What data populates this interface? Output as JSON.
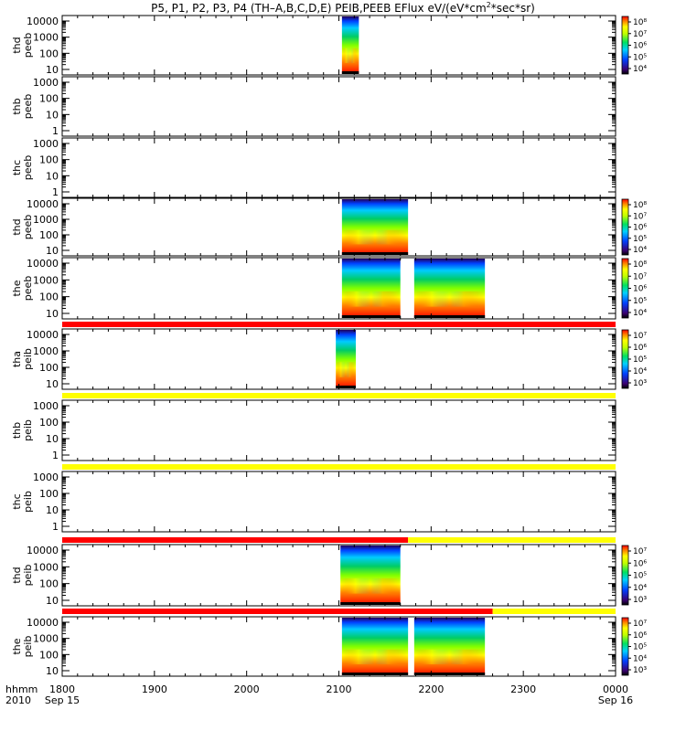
{
  "chart_data": {
    "type": "heatmap",
    "title_parts": [
      "P5, P1, P2, P3, P4 (TH–A,B,C,D,E) PEIB,PEEB EFlux eV/(eV*cm",
      "2",
      "*sec*sr)"
    ],
    "x_axis": {
      "label_top": "hhmm",
      "label_bottom": "2010",
      "range": [
        "1800",
        "0000"
      ],
      "tick_labels": [
        "1800",
        "1900",
        "2000",
        "2100",
        "2200",
        "2300",
        "0000"
      ],
      "date_labels": [
        {
          "at": "1800",
          "text": "Sep 15"
        },
        {
          "at": "0000",
          "text": "Sep 16"
        }
      ]
    },
    "panels": [
      {
        "label": [
          "thd",
          "peeb"
        ],
        "yticks": [
          "10000",
          "1000",
          "100",
          "10"
        ],
        "colorbar": [
          "10⁸",
          "10⁷",
          "10⁶",
          "10⁵",
          "10⁴"
        ],
        "data_intervals": [
          [
            "2102",
            "2113"
          ]
        ]
      },
      {
        "label": [
          "thb",
          "peeb"
        ],
        "yticks": [
          "1000",
          "100",
          "10",
          "1"
        ],
        "colorbar": null,
        "data_intervals": []
      },
      {
        "label": [
          "thc",
          "peeb"
        ],
        "yticks": [
          "1000",
          "100",
          "10",
          "1"
        ],
        "colorbar": null,
        "data_intervals": []
      },
      {
        "label": [
          "thd",
          "peeb"
        ],
        "yticks": [
          "10000",
          "1000",
          "100",
          "10"
        ],
        "colorbar": [
          "10⁸",
          "10⁷",
          "10⁶",
          "10⁵",
          "10⁴"
        ],
        "data_intervals": [
          [
            "2102",
            "2145"
          ]
        ]
      },
      {
        "label": [
          "the",
          "peeb"
        ],
        "yticks": [
          "10000",
          "1000",
          "100",
          "10"
        ],
        "colorbar": [
          "10⁸",
          "10⁷",
          "10⁶",
          "10⁵",
          "10⁴"
        ],
        "data_intervals": [
          [
            "2102",
            "2140"
          ],
          [
            "2149",
            "2235"
          ]
        ]
      },
      {
        "label": [
          "tha",
          "peib"
        ],
        "yticks": [
          "10000",
          "1000",
          "100",
          "10"
        ],
        "colorbar": [
          "10⁷",
          "10⁶",
          "10⁵",
          "10⁴",
          "10³"
        ],
        "data_intervals": [
          [
            "2058",
            "2111"
          ]
        ]
      },
      {
        "label": [
          "thb",
          "peib"
        ],
        "yticks": [
          "1000",
          "100",
          "10",
          "1"
        ],
        "colorbar": null,
        "data_intervals": []
      },
      {
        "label": [
          "thc",
          "peib"
        ],
        "yticks": [
          "1000",
          "100",
          "10",
          "1"
        ],
        "colorbar": null,
        "data_intervals": []
      },
      {
        "label": [
          "thd",
          "peib"
        ],
        "yticks": [
          "10000",
          "1000",
          "100",
          "10"
        ],
        "colorbar": [
          "10⁷",
          "10⁶",
          "10⁵",
          "10⁴",
          "10³"
        ],
        "data_intervals": [
          [
            "2101",
            "2140"
          ]
        ]
      },
      {
        "label": [
          "the",
          "peib"
        ],
        "yticks": [
          "10000",
          "1000",
          "100",
          "10"
        ],
        "colorbar": [
          "10⁷",
          "10⁶",
          "10⁵",
          "10⁴",
          "10³"
        ],
        "data_intervals": [
          [
            "2102",
            "2145"
          ],
          [
            "2149",
            "2235"
          ]
        ]
      }
    ],
    "colors": {
      "red": "#ff0000",
      "yellow": "#ffff00",
      "black": "#000000"
    }
  }
}
